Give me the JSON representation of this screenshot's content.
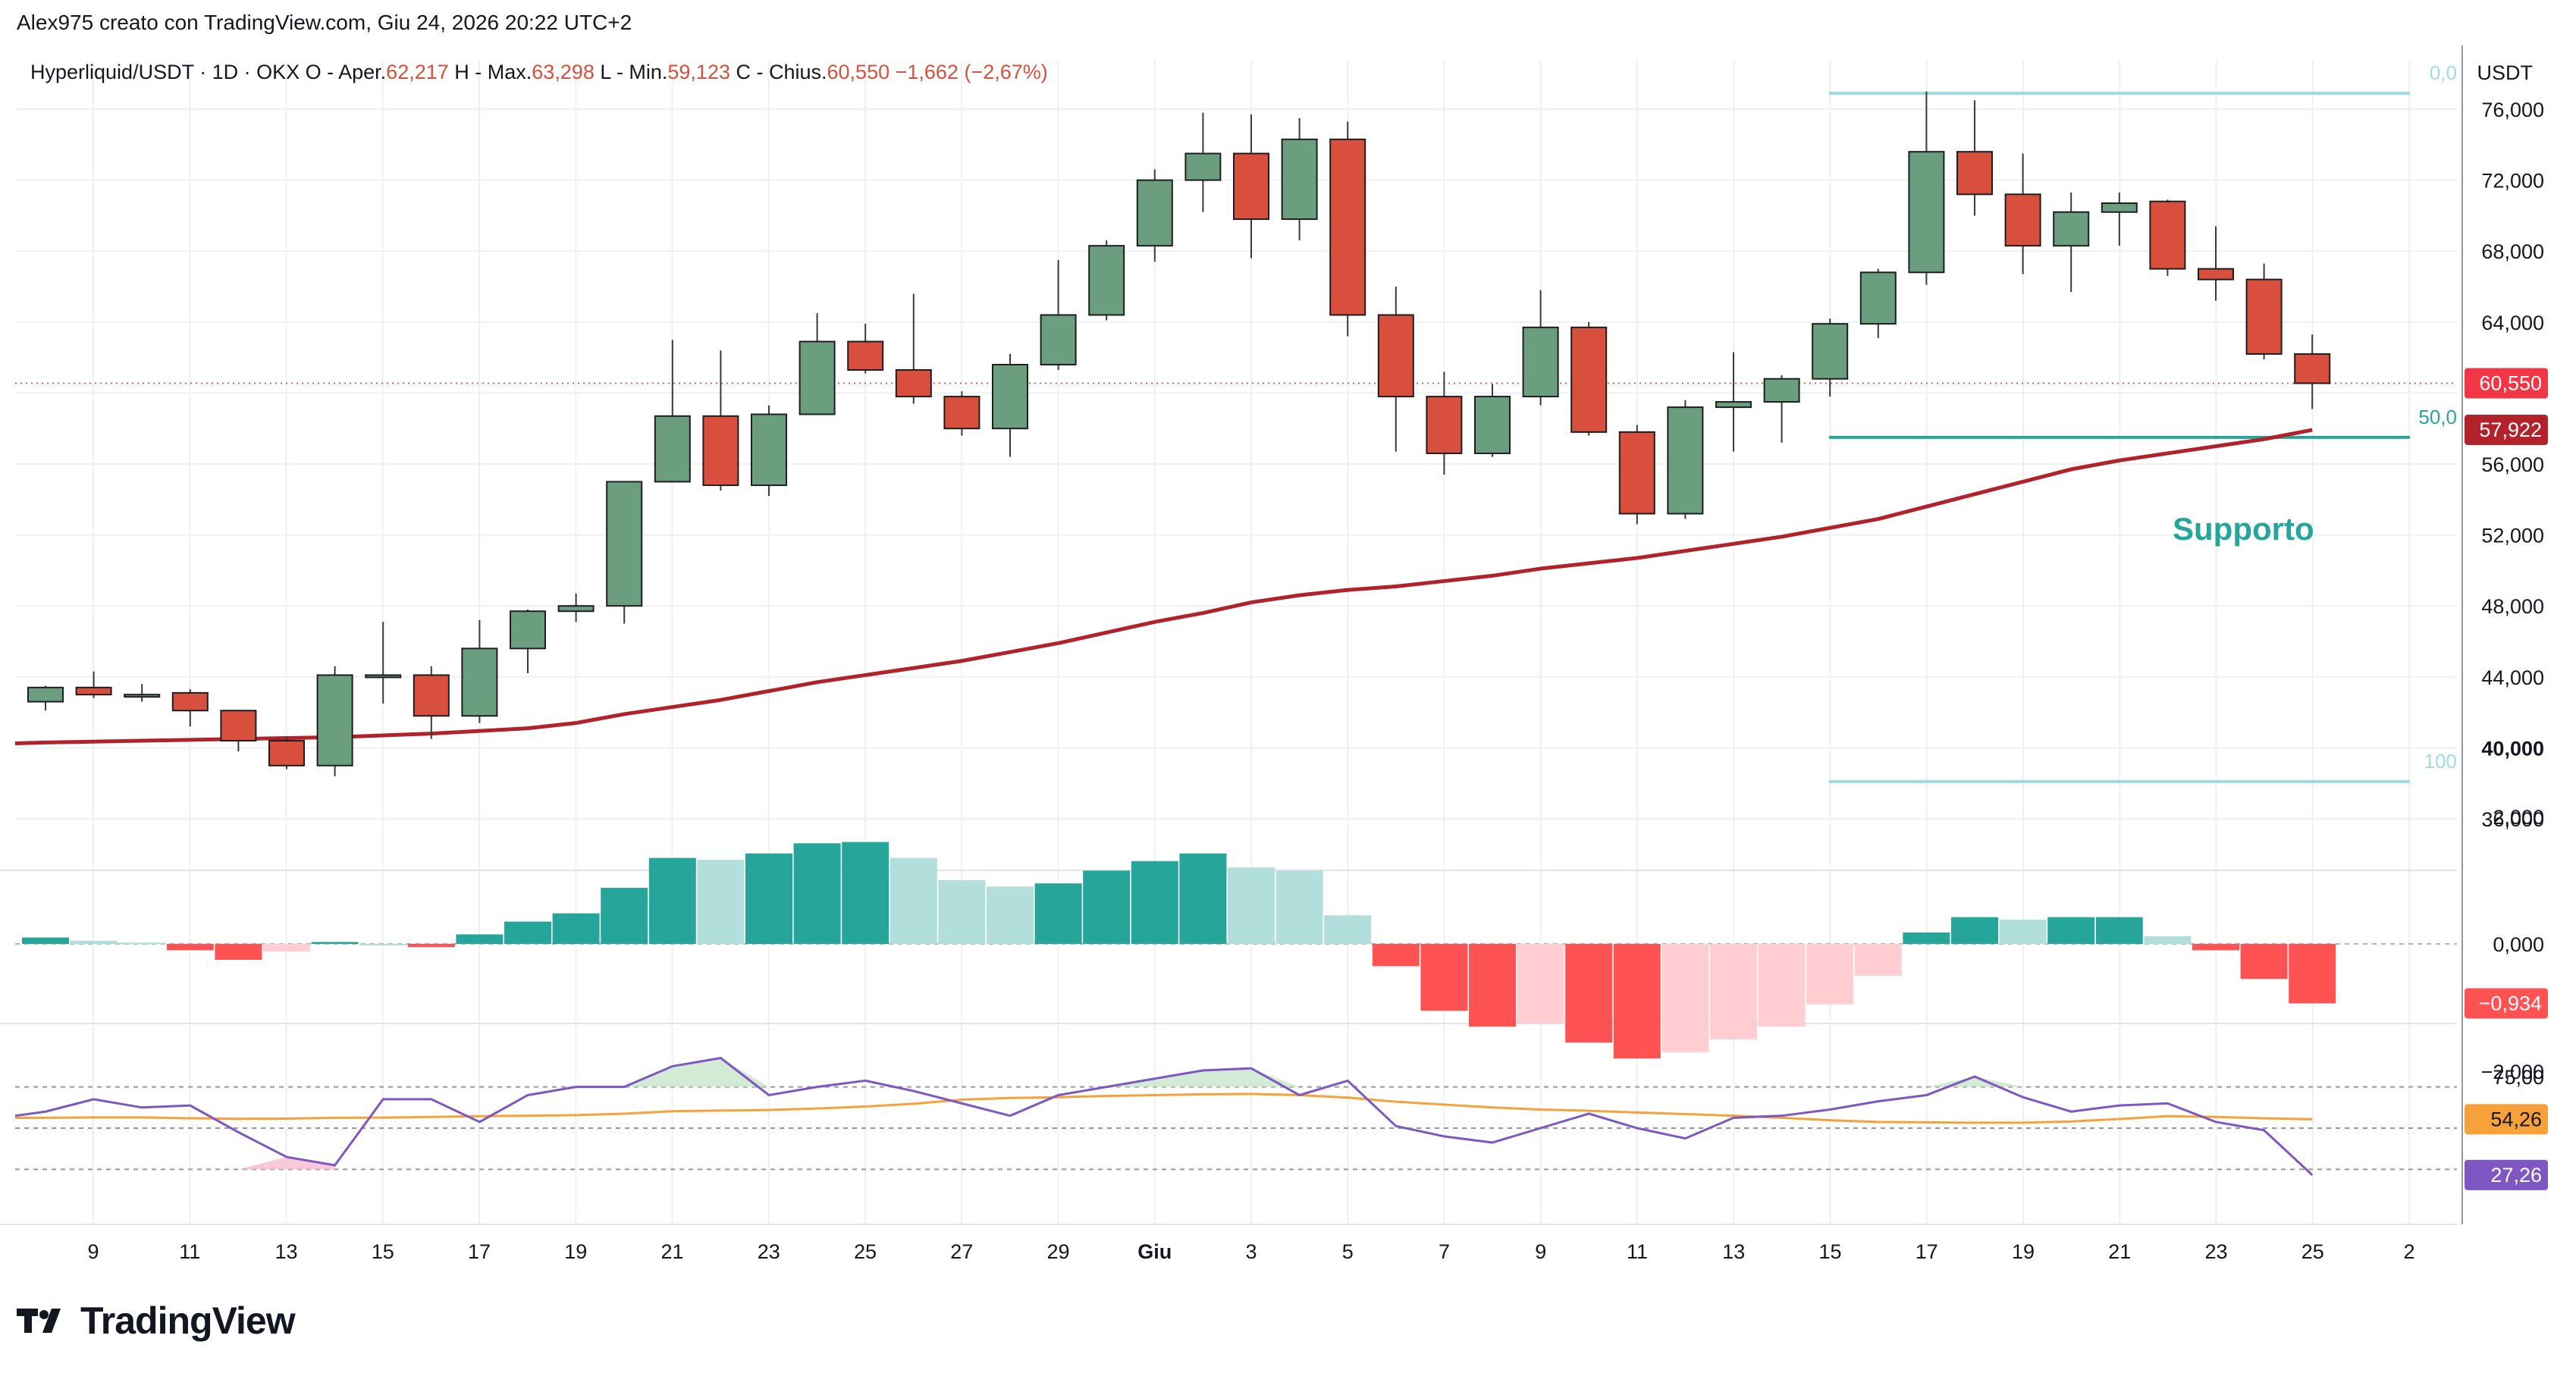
{
  "header": {
    "attribution": "Alex975 creato con TradingView.com, Giu 24, 2026 20:22 UTC+2"
  },
  "legend": {
    "symbol": "Hyperliquid/USDT · 1D · OKX",
    "open_label": "O - Aper.",
    "open_value": "62,217",
    "high_label": "H - Max.",
    "high_value": "63,298",
    "low_label": "L - Min.",
    "low_value": "59,123",
    "close_label": "C - Chius.",
    "close_value": "60,550",
    "change": "−1,662 (−2,67%)"
  },
  "axis": {
    "currency": "USDT",
    "price_ticks": [
      "76,000",
      "72,000",
      "68,000",
      "64,000",
      "56,000",
      "52,000",
      "48,000",
      "44,000",
      "40,000",
      "36,000"
    ],
    "macd_ticks": [
      "2,000",
      "0,000",
      "−2,000"
    ],
    "rsi_ticks": [
      "75,00"
    ],
    "x_ticks": [
      "9",
      "11",
      "13",
      "15",
      "17",
      "19",
      "21",
      "23",
      "25",
      "27",
      "29",
      "Giu",
      "3",
      "5",
      "7",
      "9",
      "11",
      "13",
      "15",
      "17",
      "19",
      "21",
      "23",
      "25",
      "2"
    ],
    "price_label": "60,550",
    "ma_label": "57,922",
    "macd_label": "−0,934",
    "rsi_ma_label": "54,26",
    "rsi_label": "27,26"
  },
  "annotations": {
    "fib_top": "0,0",
    "fib_mid": "50,0",
    "fib_bottom": "100",
    "support": "Supporto"
  },
  "logo": {
    "name": "TradingView"
  },
  "colors": {
    "up": "#6a9e7f",
    "down": "#d94f3d",
    "ma": "#b2222b",
    "fib": "#9fdbe6",
    "support": "#26a69a",
    "rsi": "#7e57c2",
    "rsi_ma": "#f7a13b",
    "macd_up_strong": "#26a69a",
    "macd_up_weak": "#b2dfdb",
    "macd_down_strong": "#ff5252",
    "macd_down_weak": "#ffcdd2"
  },
  "chart_data": {
    "type": "candlestick",
    "title": "Hyperliquid/USDT · 1D · OKX",
    "ylabel": "USDT",
    "ylim": [
      33000,
      78000
    ],
    "candles": [
      {
        "o": 42.6,
        "h": 43.5,
        "l": 42.1,
        "c": 43.4
      },
      {
        "o": 43.4,
        "h": 44.3,
        "l": 42.8,
        "c": 43.0
      },
      {
        "o": 43.0,
        "h": 43.6,
        "l": 42.6,
        "c": 43.0
      },
      {
        "o": 43.1,
        "h": 43.3,
        "l": 41.2,
        "c": 42.1
      },
      {
        "o": 42.1,
        "h": 42.1,
        "l": 39.8,
        "c": 40.4
      },
      {
        "o": 40.4,
        "h": 40.6,
        "l": 38.8,
        "c": 39.0
      },
      {
        "o": 39.0,
        "h": 44.6,
        "l": 38.4,
        "c": 44.1
      },
      {
        "o": 44.1,
        "h": 47.1,
        "l": 42.5,
        "c": 44.1
      },
      {
        "o": 44.1,
        "h": 44.6,
        "l": 40.5,
        "c": 41.8
      },
      {
        "o": 41.8,
        "h": 47.2,
        "l": 41.4,
        "c": 45.6
      },
      {
        "o": 45.6,
        "h": 47.8,
        "l": 44.2,
        "c": 47.7
      },
      {
        "o": 47.7,
        "h": 48.7,
        "l": 47.1,
        "c": 48.0
      },
      {
        "o": 48.0,
        "h": 55.0,
        "l": 47.0,
        "c": 55.0
      },
      {
        "o": 55.0,
        "h": 63.0,
        "l": 55.0,
        "c": 58.7
      },
      {
        "o": 58.7,
        "h": 62.4,
        "l": 54.5,
        "c": 54.8
      },
      {
        "o": 54.8,
        "h": 59.3,
        "l": 54.2,
        "c": 58.8
      },
      {
        "o": 58.8,
        "h": 64.5,
        "l": 58.8,
        "c": 62.9
      },
      {
        "o": 62.9,
        "h": 63.9,
        "l": 61.1,
        "c": 61.3
      },
      {
        "o": 61.3,
        "h": 65.6,
        "l": 59.4,
        "c": 59.8
      },
      {
        "o": 59.8,
        "h": 60.1,
        "l": 57.6,
        "c": 58.0
      },
      {
        "o": 58.0,
        "h": 62.2,
        "l": 56.4,
        "c": 61.6
      },
      {
        "o": 61.6,
        "h": 67.5,
        "l": 61.3,
        "c": 64.4
      },
      {
        "o": 64.4,
        "h": 68.6,
        "l": 64.1,
        "c": 68.3
      },
      {
        "o": 68.3,
        "h": 72.6,
        "l": 67.4,
        "c": 72.0
      },
      {
        "o": 72.0,
        "h": 75.8,
        "l": 70.2,
        "c": 73.5
      },
      {
        "o": 73.5,
        "h": 75.7,
        "l": 67.6,
        "c": 69.8
      },
      {
        "o": 69.8,
        "h": 75.5,
        "l": 68.6,
        "c": 74.3
      },
      {
        "o": 74.3,
        "h": 75.3,
        "l": 63.2,
        "c": 64.4
      },
      {
        "o": 64.4,
        "h": 66.0,
        "l": 56.7,
        "c": 59.8
      },
      {
        "o": 59.8,
        "h": 61.2,
        "l": 55.4,
        "c": 56.6
      },
      {
        "o": 56.6,
        "h": 60.5,
        "l": 56.4,
        "c": 59.8
      },
      {
        "o": 59.8,
        "h": 65.8,
        "l": 59.3,
        "c": 63.7
      },
      {
        "o": 63.7,
        "h": 64.0,
        "l": 57.6,
        "c": 57.8
      },
      {
        "o": 57.8,
        "h": 58.2,
        "l": 52.6,
        "c": 53.2
      },
      {
        "o": 53.2,
        "h": 59.6,
        "l": 52.9,
        "c": 59.2
      },
      {
        "o": 59.2,
        "h": 62.3,
        "l": 56.7,
        "c": 59.5
      },
      {
        "o": 59.5,
        "h": 61.0,
        "l": 57.2,
        "c": 60.8
      },
      {
        "o": 60.8,
        "h": 64.2,
        "l": 59.8,
        "c": 63.9
      },
      {
        "o": 63.9,
        "h": 67.0,
        "l": 63.1,
        "c": 66.8
      },
      {
        "o": 66.8,
        "h": 77.0,
        "l": 66.1,
        "c": 73.6
      },
      {
        "o": 73.6,
        "h": 76.5,
        "l": 70.0,
        "c": 71.2
      },
      {
        "o": 71.2,
        "h": 73.5,
        "l": 66.7,
        "c": 68.3
      },
      {
        "o": 68.3,
        "h": 71.3,
        "l": 65.7,
        "c": 70.2
      },
      {
        "o": 70.2,
        "h": 71.3,
        "l": 68.3,
        "c": 70.7
      },
      {
        "o": 70.8,
        "h": 70.9,
        "l": 66.6,
        "c": 67.0
      },
      {
        "o": 67.0,
        "h": 69.4,
        "l": 65.2,
        "c": 66.4
      },
      {
        "o": 66.4,
        "h": 67.3,
        "l": 61.9,
        "c": 62.2
      },
      {
        "o": 62.2,
        "h": 63.3,
        "l": 59.1,
        "c": 60.55
      }
    ],
    "ma_values": [
      40.3,
      40.35,
      40.4,
      40.45,
      40.5,
      40.55,
      40.6,
      40.7,
      40.8,
      40.95,
      41.1,
      41.4,
      41.9,
      42.3,
      42.7,
      43.2,
      43.7,
      44.1,
      44.5,
      44.9,
      45.4,
      45.9,
      46.5,
      47.1,
      47.6,
      48.2,
      48.6,
      48.9,
      49.1,
      49.4,
      49.7,
      50.1,
      50.4,
      50.7,
      51.1,
      51.5,
      51.9,
      52.4,
      52.9,
      53.6,
      54.3,
      55.0,
      55.7,
      56.2,
      56.6,
      57.0,
      57.4,
      57.922
    ],
    "fib_levels": [
      {
        "label": "0,0",
        "price": 76.9
      },
      {
        "label": "50,0",
        "price": 57.5
      },
      {
        "label": "100",
        "price": 38.1
      }
    ],
    "macd_hist": [
      0.1,
      0.05,
      0.02,
      -0.1,
      -0.25,
      -0.12,
      0.03,
      0.0,
      -0.05,
      0.15,
      0.35,
      0.48,
      0.88,
      1.35,
      1.32,
      1.42,
      1.58,
      1.6,
      1.35,
      1.0,
      0.9,
      0.95,
      1.15,
      1.3,
      1.42,
      1.2,
      1.15,
      0.45,
      -0.35,
      -1.05,
      -1.3,
      -1.25,
      -1.55,
      -1.8,
      -1.7,
      -1.5,
      -1.3,
      -0.95,
      -0.5,
      0.18,
      0.42,
      0.38,
      0.42,
      0.42,
      0.12,
      -0.1,
      -0.55,
      -0.934
    ],
    "rsi": [
      58,
      64,
      60,
      61,
      48,
      36,
      32,
      64,
      64,
      53,
      66,
      70,
      70,
      80,
      84,
      66,
      70,
      73,
      68,
      62,
      56,
      66,
      70,
      74,
      78,
      79,
      66,
      73,
      51,
      46,
      43,
      50,
      57,
      50,
      45,
      55,
      56,
      59,
      63,
      66,
      75,
      65,
      58,
      61,
      62,
      53,
      49,
      27.26
    ],
    "rsi_ma": [
      55,
      55.2,
      55.2,
      54.8,
      54.5,
      54.6,
      55,
      55.1,
      55.4,
      55.8,
      56,
      56.3,
      57,
      58.2,
      58.5,
      58.8,
      59.5,
      60.5,
      61.8,
      63.8,
      64.6,
      65.0,
      65.6,
      66,
      66.4,
      66.6,
      66.0,
      64.8,
      62.8,
      61.4,
      60.0,
      59.0,
      58.4,
      57.6,
      56.8,
      56.0,
      55.0,
      53.8,
      53.0,
      52.8,
      52.6,
      52.6,
      53.2,
      54.4,
      55.8,
      55.4,
      54.8,
      54.26
    ]
  }
}
